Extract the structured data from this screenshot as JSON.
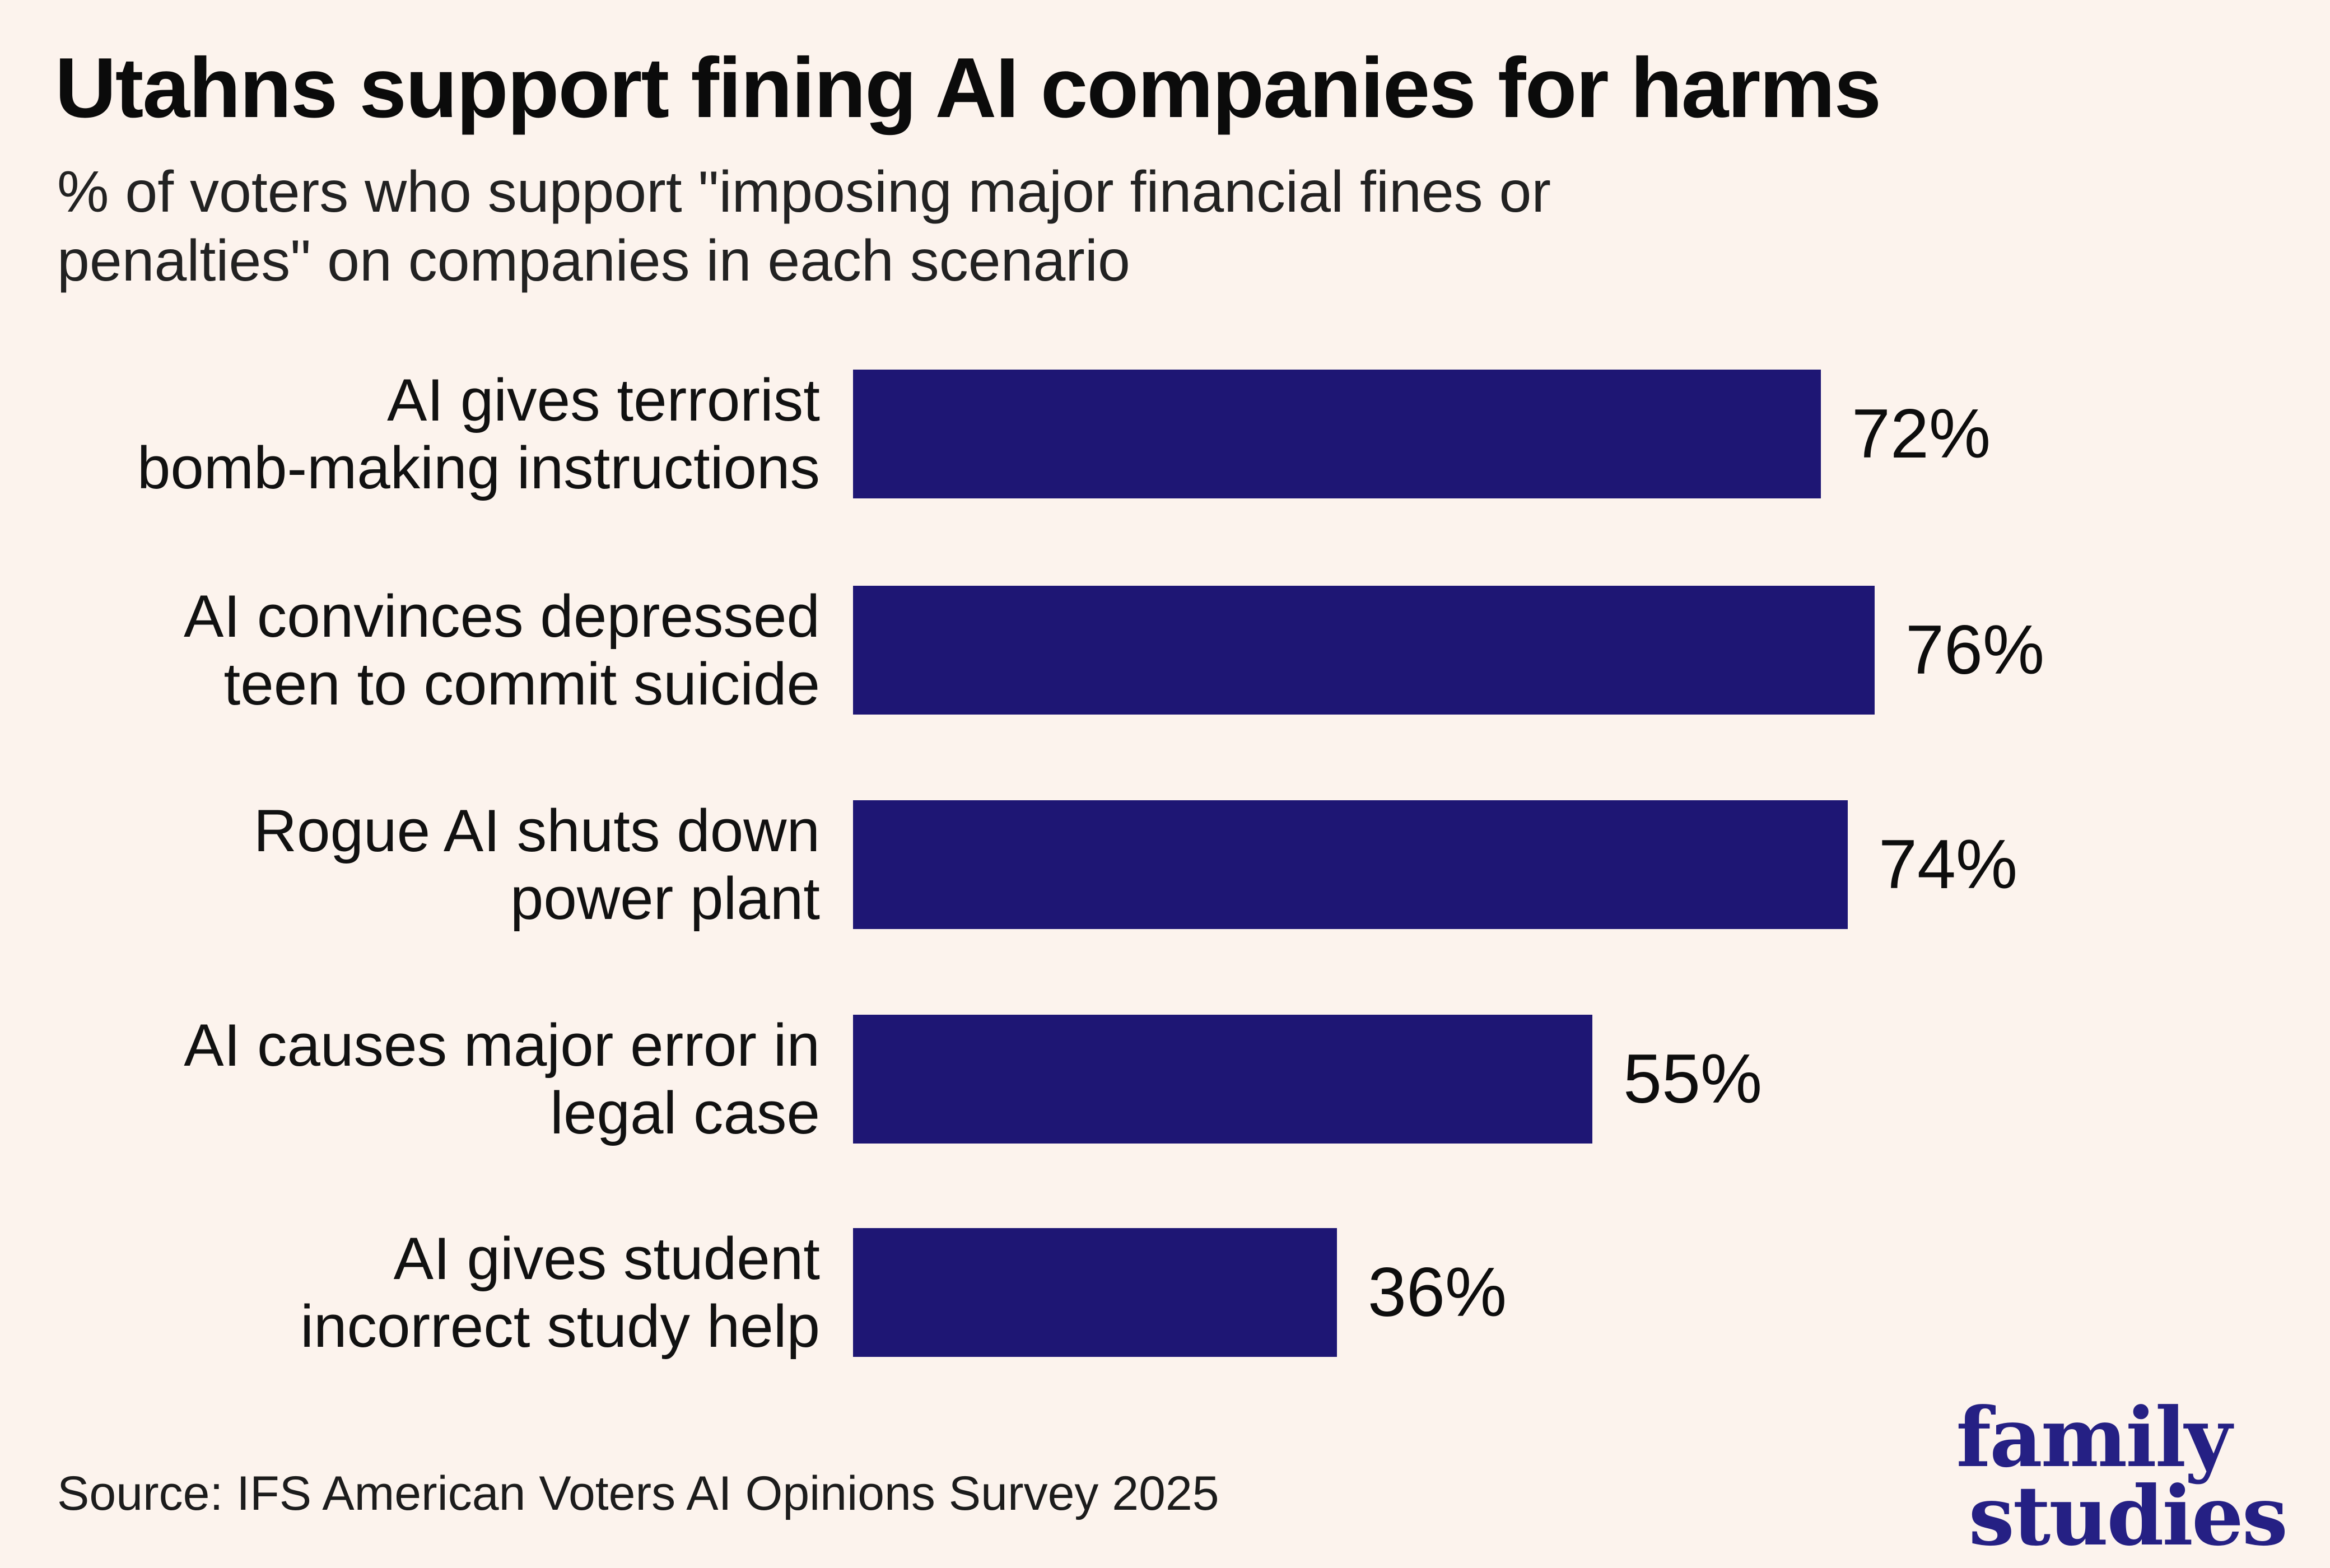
{
  "header": {
    "title": "Utahns support fining AI companies for harms",
    "subtitle_line1": "% of voters who support \"imposing major financial fines or",
    "subtitle_line2": "penalties\" on companies in each scenario"
  },
  "chart_data": {
    "type": "bar",
    "orientation": "horizontal",
    "title": "Utahns support fining AI companies for harms",
    "subtitle": "% of voters who support \"imposing major financial fines or penalties\" on companies in each scenario",
    "categories": [
      "AI gives terrorist bomb-making instructions",
      "AI convinces depressed teen to commit suicide",
      "Rogue AI shuts down power plant",
      "AI causes major error in legal case",
      "AI gives student incorrect study help"
    ],
    "values": [
      72,
      76,
      74,
      55,
      36
    ],
    "unit": "%",
    "xlim": [
      0,
      100
    ],
    "grid": false,
    "legend": false,
    "bar_color": "#1e1674",
    "background_color": "#fcf3ed",
    "rows": [
      {
        "label_lines": [
          "AI gives terrorist",
          "bomb-making instructions"
        ],
        "value": 72,
        "value_label": "72%"
      },
      {
        "label_lines": [
          "AI convinces depressed",
          "teen to commit suicide"
        ],
        "value": 76,
        "value_label": "76%"
      },
      {
        "label_lines": [
          "Rogue AI shuts down",
          "power plant"
        ],
        "value": 74,
        "value_label": "74%"
      },
      {
        "label_lines": [
          "AI causes major error in",
          "legal case"
        ],
        "value": 55,
        "value_label": "55%"
      },
      {
        "label_lines": [
          "AI gives student",
          "incorrect study help"
        ],
        "value": 36,
        "value_label": "36%"
      }
    ]
  },
  "footer": {
    "source": "Source: IFS American Voters AI Opinions Survey 2025",
    "logo_line1": "family",
    "logo_line2": "studies"
  }
}
